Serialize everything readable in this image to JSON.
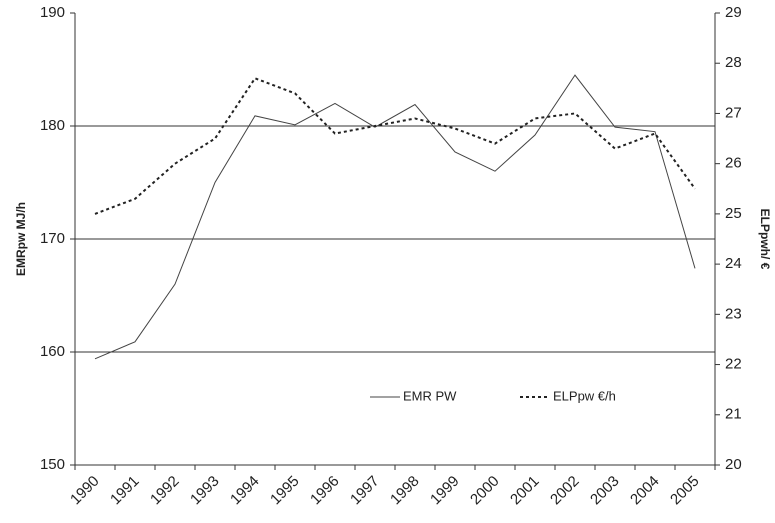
{
  "chart_data": {
    "type": "line",
    "y_label": "EMRpw MJ/h",
    "y2_label": "ELPpwh/ €",
    "categories": [
      "1990",
      "1991",
      "1992",
      "1993",
      "1994",
      "1995",
      "1996",
      "1997",
      "1998",
      "1999",
      "2000",
      "2001",
      "2002",
      "2003",
      "2004",
      "2005"
    ],
    "series": [
      {
        "name": "EMR PW",
        "color": "#444444",
        "style": "solid",
        "values": [
          159.4,
          160.9,
          166,
          175,
          180.9,
          180.1,
          182,
          179.9,
          181.9,
          177.7,
          176,
          179.2,
          184.5,
          179.9,
          179.5,
          167.4
        ]
      },
      {
        "name": "ELPpw €/h",
        "color": "#222222",
        "style": "dotted",
        "axis": "y2",
        "values": [
          25.0,
          25.3,
          26.0,
          26.5,
          27.7,
          27.4,
          26.6,
          26.75,
          26.9,
          26.7,
          26.4,
          26.9,
          27.0,
          26.3,
          26.6,
          25.5
        ]
      }
    ],
    "ylim": [
      150,
      190
    ],
    "yticks": [
      150,
      160,
      170,
      180,
      190
    ],
    "y2lim": [
      20,
      29
    ],
    "y2ticks": [
      20,
      21,
      22,
      23,
      24,
      25,
      26,
      27,
      28,
      29
    ],
    "grid": true
  }
}
